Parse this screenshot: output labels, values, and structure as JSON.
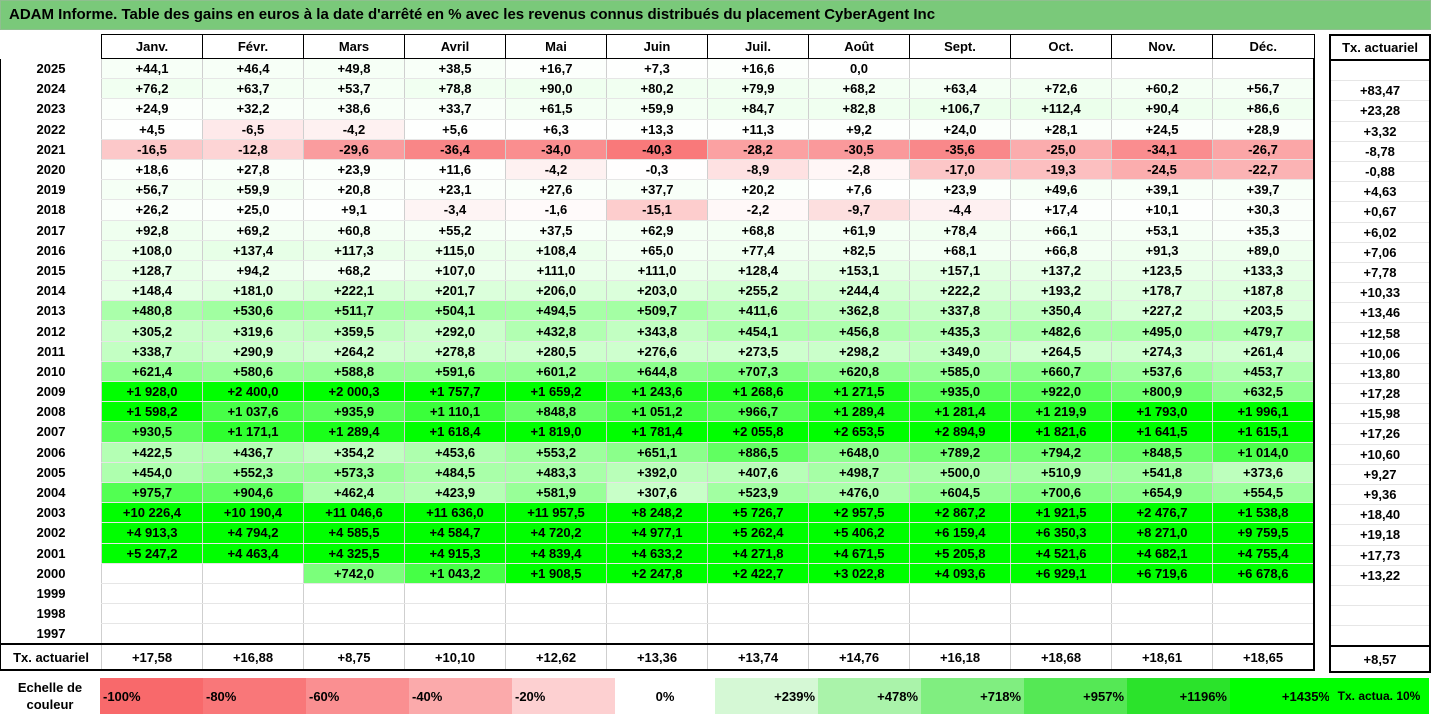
{
  "title": "ADAM Informe. Table des gains en euros à la date d'arrêté en % avec les revenus connus distribués du placement CyberAgent Inc",
  "months": [
    "Janv.",
    "Févr.",
    "Mars",
    "Avril",
    "Mai",
    "Juin",
    "Juil.",
    "Août",
    "Sept.",
    "Oct.",
    "Nov.",
    "Déc."
  ],
  "side_header": "Tx. actuariel",
  "rows": [
    {
      "year": "2025",
      "cells": [
        "+44,1",
        "+46,4",
        "+49,8",
        "+38,5",
        "+16,7",
        "+7,3",
        "+16,6",
        "0,0",
        "",
        "",
        "",
        ""
      ],
      "rate": ""
    },
    {
      "year": "2024",
      "cells": [
        "+76,2",
        "+63,7",
        "+53,7",
        "+78,8",
        "+90,0",
        "+80,2",
        "+79,9",
        "+68,2",
        "+63,4",
        "+72,6",
        "+60,2",
        "+56,7"
      ],
      "rate": "+83,47"
    },
    {
      "year": "2023",
      "cells": [
        "+24,9",
        "+32,2",
        "+38,6",
        "+33,7",
        "+61,5",
        "+59,9",
        "+84,7",
        "+82,8",
        "+106,7",
        "+112,4",
        "+90,4",
        "+86,6"
      ],
      "rate": "+23,28"
    },
    {
      "year": "2022",
      "cells": [
        "+4,5",
        "-6,5",
        "-4,2",
        "+5,6",
        "+6,3",
        "+13,3",
        "+11,3",
        "+9,2",
        "+24,0",
        "+28,1",
        "+24,5",
        "+28,9"
      ],
      "rate": "+3,32"
    },
    {
      "year": "2021",
      "cells": [
        "-16,5",
        "-12,8",
        "-29,6",
        "-36,4",
        "-34,0",
        "-40,3",
        "-28,2",
        "-30,5",
        "-35,6",
        "-25,0",
        "-34,1",
        "-26,7"
      ],
      "rate": "-8,78"
    },
    {
      "year": "2020",
      "cells": [
        "+18,6",
        "+27,8",
        "+23,9",
        "+11,6",
        "-4,2",
        "-0,3",
        "-8,9",
        "-2,8",
        "-17,0",
        "-19,3",
        "-24,5",
        "-22,7"
      ],
      "rate": "-0,88"
    },
    {
      "year": "2019",
      "cells": [
        "+56,7",
        "+59,9",
        "+20,8",
        "+23,1",
        "+27,6",
        "+37,7",
        "+20,2",
        "+7,6",
        "+23,9",
        "+49,6",
        "+39,1",
        "+39,7"
      ],
      "rate": "+4,63"
    },
    {
      "year": "2018",
      "cells": [
        "+26,2",
        "+25,0",
        "+9,1",
        "-3,4",
        "-1,6",
        "-15,1",
        "-2,2",
        "-9,7",
        "-4,4",
        "+17,4",
        "+10,1",
        "+30,3"
      ],
      "rate": "+0,67"
    },
    {
      "year": "2017",
      "cells": [
        "+92,8",
        "+69,2",
        "+60,8",
        "+55,2",
        "+37,5",
        "+62,9",
        "+68,8",
        "+61,9",
        "+78,4",
        "+66,1",
        "+53,1",
        "+35,3"
      ],
      "rate": "+6,02"
    },
    {
      "year": "2016",
      "cells": [
        "+108,0",
        "+137,4",
        "+117,3",
        "+115,0",
        "+108,4",
        "+65,0",
        "+77,4",
        "+82,5",
        "+68,1",
        "+66,8",
        "+91,3",
        "+89,0"
      ],
      "rate": "+7,06"
    },
    {
      "year": "2015",
      "cells": [
        "+128,7",
        "+94,2",
        "+68,2",
        "+107,0",
        "+111,0",
        "+111,0",
        "+128,4",
        "+153,1",
        "+157,1",
        "+137,2",
        "+123,5",
        "+133,3"
      ],
      "rate": "+7,78"
    },
    {
      "year": "2014",
      "cells": [
        "+148,4",
        "+181,0",
        "+222,1",
        "+201,7",
        "+206,0",
        "+203,0",
        "+255,2",
        "+244,4",
        "+222,2",
        "+193,2",
        "+178,7",
        "+187,8"
      ],
      "rate": "+10,33"
    },
    {
      "year": "2013",
      "cells": [
        "+480,8",
        "+530,6",
        "+511,7",
        "+504,1",
        "+494,5",
        "+509,7",
        "+411,6",
        "+362,8",
        "+337,8",
        "+350,4",
        "+227,2",
        "+203,5"
      ],
      "rate": "+13,46"
    },
    {
      "year": "2012",
      "cells": [
        "+305,2",
        "+319,6",
        "+359,5",
        "+292,0",
        "+432,8",
        "+343,8",
        "+454,1",
        "+456,8",
        "+435,3",
        "+482,6",
        "+495,0",
        "+479,7"
      ],
      "rate": "+12,58"
    },
    {
      "year": "2011",
      "cells": [
        "+338,7",
        "+290,9",
        "+264,2",
        "+278,8",
        "+280,5",
        "+276,6",
        "+273,5",
        "+298,2",
        "+349,0",
        "+264,5",
        "+274,3",
        "+261,4"
      ],
      "rate": "+10,06"
    },
    {
      "year": "2010",
      "cells": [
        "+621,4",
        "+580,6",
        "+588,8",
        "+591,6",
        "+601,2",
        "+644,8",
        "+707,3",
        "+620,8",
        "+585,0",
        "+660,7",
        "+537,6",
        "+453,7"
      ],
      "rate": "+13,80"
    },
    {
      "year": "2009",
      "cells": [
        "+1 928,0",
        "+2 400,0",
        "+2 000,3",
        "+1 757,7",
        "+1 659,2",
        "+1 243,6",
        "+1 268,6",
        "+1 271,5",
        "+935,0",
        "+922,0",
        "+800,9",
        "+632,5"
      ],
      "rate": "+17,28"
    },
    {
      "year": "2008",
      "cells": [
        "+1 598,2",
        "+1 037,6",
        "+935,9",
        "+1 110,1",
        "+848,8",
        "+1 051,2",
        "+966,7",
        "+1 289,4",
        "+1 281,4",
        "+1 219,9",
        "+1 793,0",
        "+1 996,1"
      ],
      "rate": "+15,98"
    },
    {
      "year": "2007",
      "cells": [
        "+930,5",
        "+1 171,1",
        "+1 289,4",
        "+1 618,4",
        "+1 819,0",
        "+1 781,4",
        "+2 055,8",
        "+2 653,5",
        "+2 894,9",
        "+1 821,6",
        "+1 641,5",
        "+1 615,1"
      ],
      "rate": "+17,26"
    },
    {
      "year": "2006",
      "cells": [
        "+422,5",
        "+436,7",
        "+354,2",
        "+453,6",
        "+553,2",
        "+651,1",
        "+886,5",
        "+648,0",
        "+789,2",
        "+794,2",
        "+848,5",
        "+1 014,0"
      ],
      "rate": "+10,60"
    },
    {
      "year": "2005",
      "cells": [
        "+454,0",
        "+552,3",
        "+573,3",
        "+484,5",
        "+483,3",
        "+392,0",
        "+407,6",
        "+498,7",
        "+500,0",
        "+510,9",
        "+541,8",
        "+373,6"
      ],
      "rate": "+9,27"
    },
    {
      "year": "2004",
      "cells": [
        "+975,7",
        "+904,6",
        "+462,4",
        "+423,9",
        "+581,9",
        "+307,6",
        "+523,9",
        "+476,0",
        "+604,5",
        "+700,6",
        "+654,9",
        "+554,5"
      ],
      "rate": "+9,36"
    },
    {
      "year": "2003",
      "cells": [
        "+10 226,4",
        "+10 190,4",
        "+11 046,6",
        "+11 636,0",
        "+11 957,5",
        "+8 248,2",
        "+5 726,7",
        "+2 957,5",
        "+2 867,2",
        "+1 921,5",
        "+2 476,7",
        "+1 538,8"
      ],
      "rate": "+18,40"
    },
    {
      "year": "2002",
      "cells": [
        "+4 913,3",
        "+4 794,2",
        "+4 585,5",
        "+4 584,7",
        "+4 720,2",
        "+4 977,1",
        "+5 262,4",
        "+5 406,2",
        "+6 159,4",
        "+6 350,3",
        "+8 271,0",
        "+9 759,5"
      ],
      "rate": "+19,18"
    },
    {
      "year": "2001",
      "cells": [
        "+5 247,2",
        "+4 463,4",
        "+4 325,5",
        "+4 915,3",
        "+4 839,4",
        "+4 633,2",
        "+4 271,8",
        "+4 671,5",
        "+5 205,8",
        "+4 521,6",
        "+4 682,1",
        "+4 755,4"
      ],
      "rate": "+17,73"
    },
    {
      "year": "2000",
      "cells": [
        "",
        "",
        "+742,0",
        "+1 043,2",
        "+1 908,5",
        "+2 247,8",
        "+2 422,7",
        "+3 022,8",
        "+4 093,6",
        "+6 929,1",
        "+6 719,6",
        "+6 678,6"
      ],
      "rate": "+13,22"
    },
    {
      "year": "1999",
      "cells": [
        "",
        "",
        "",
        "",
        "",
        "",
        "",
        "",
        "",
        "",
        "",
        ""
      ],
      "rate": ""
    },
    {
      "year": "1998",
      "cells": [
        "",
        "",
        "",
        "",
        "",
        "",
        "",
        "",
        "",
        "",
        "",
        ""
      ],
      "rate": ""
    },
    {
      "year": "1997",
      "cells": [
        "",
        "",
        "",
        "",
        "",
        "",
        "",
        "",
        "",
        "",
        "",
        ""
      ],
      "rate": ""
    }
  ],
  "footer": {
    "label": "Tx. actuariel",
    "cells": [
      "+17,58",
      "+16,88",
      "+8,75",
      "+10,10",
      "+12,62",
      "+13,36",
      "+13,74",
      "+14,76",
      "+16,18",
      "+18,68",
      "+18,61",
      "+18,65"
    ],
    "rate": "+8,57"
  },
  "scale": {
    "label": "Echelle de couleur",
    "steps": [
      {
        "text": "-100%",
        "color": "#f8696b",
        "align": "left"
      },
      {
        "text": "-80%",
        "color": "#f97779",
        "align": "left"
      },
      {
        "text": "-60%",
        "color": "#fa8f91",
        "align": "left"
      },
      {
        "text": "-40%",
        "color": "#fbaaab",
        "align": "left"
      },
      {
        "text": "-20%",
        "color": "#fdd0d1",
        "align": "left"
      },
      {
        "text": "0%",
        "color": "#ffffff",
        "align": "center"
      },
      {
        "text": "+239%",
        "color": "#d5f8d5",
        "align": "right"
      },
      {
        "text": "+478%",
        "color": "#aaf3aa",
        "align": "right"
      },
      {
        "text": "+718%",
        "color": "#80ee80",
        "align": "right"
      },
      {
        "text": "+957%",
        "color": "#55e855",
        "align": "right"
      },
      {
        "text": "+1196%",
        "color": "#2be32b",
        "align": "right"
      },
      {
        "text": "+1435%",
        "color": "#00ff00",
        "align": "right"
      }
    ],
    "legend": "Tx. actua. 10%",
    "legend_color": "#00ff00"
  }
}
